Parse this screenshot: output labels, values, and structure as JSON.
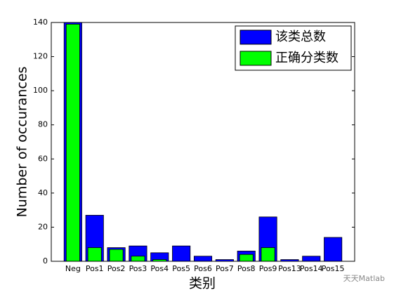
{
  "chart_data": {
    "type": "bar",
    "x_label": "类别",
    "y_label": "Number of occurances",
    "categories": [
      "Neg",
      "Pos1",
      "Pos2",
      "Pos3",
      "Pos4",
      "Pos5",
      "Pos6",
      "Pos7",
      "Pos8",
      "Pos9",
      "Pos13",
      "Pos14",
      "Pos15"
    ],
    "series": [
      {
        "name": "该类总数",
        "color": "#0000ff",
        "values": [
          140,
          27,
          8,
          9,
          5,
          9,
          3,
          1,
          6,
          26,
          1,
          3,
          14
        ]
      },
      {
        "name": "正确分类数",
        "color": "#00ff00",
        "values": [
          139,
          8,
          7,
          3,
          1,
          0,
          0,
          0,
          4,
          8,
          0,
          0,
          0
        ]
      }
    ],
    "ylim": [
      0,
      140
    ],
    "yticks": [
      0,
      20,
      40,
      60,
      80,
      100,
      120,
      140
    ],
    "legend": "upper right",
    "grid": false
  },
  "watermark": "天天Matlab"
}
